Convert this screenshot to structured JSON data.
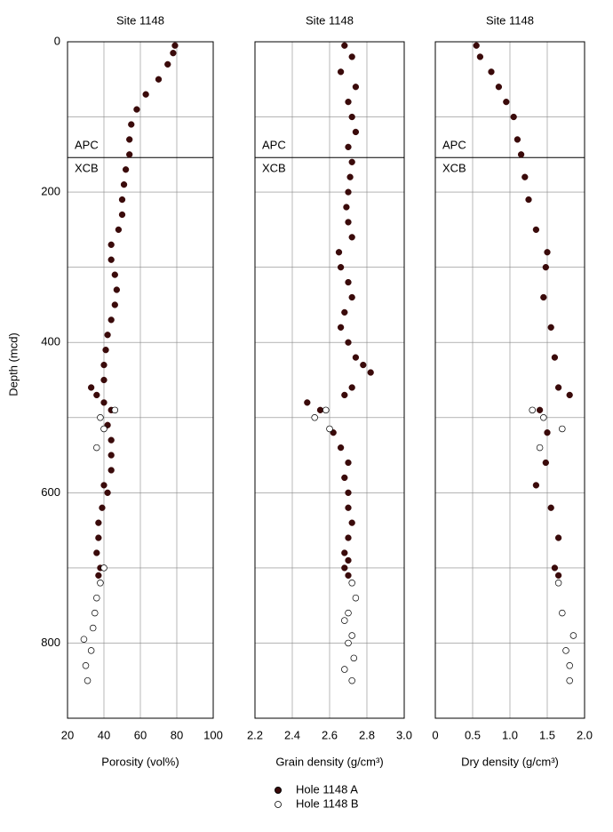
{
  "chart_data": [
    {
      "type": "scatter",
      "title": "Site 1148",
      "x_label": "Porosity (vol%)",
      "y_label": "Depth (mcd)",
      "xlim": [
        20,
        100
      ],
      "xticks": [
        20,
        40,
        60,
        80,
        100
      ],
      "ylim": [
        0,
        900
      ],
      "y_inverted": true,
      "yticks": [
        0,
        200,
        400,
        600,
        800
      ],
      "y_minor_grid": [
        100,
        300,
        500,
        700
      ],
      "grid": true,
      "annotations": [
        "APC",
        "XCB"
      ],
      "boundary_depth": 154,
      "series": [
        {
          "name": "Hole 1148 A",
          "color": "#3a0a0a",
          "filled": true,
          "x": [
            79,
            78,
            75,
            70,
            63,
            58,
            55,
            54,
            54,
            52,
            51,
            50,
            50,
            48,
            44,
            44,
            46,
            47,
            46,
            44,
            42,
            41,
            40,
            40,
            33,
            36,
            40,
            44,
            42,
            44,
            44,
            44,
            40,
            42,
            39,
            37,
            37,
            36,
            38,
            37
          ],
          "y": [
            5,
            15,
            30,
            50,
            70,
            90,
            110,
            130,
            150,
            170,
            190,
            210,
            230,
            250,
            270,
            290,
            310,
            330,
            350,
            370,
            390,
            410,
            430,
            450,
            460,
            470,
            480,
            490,
            510,
            530,
            550,
            570,
            590,
            600,
            620,
            640,
            660,
            680,
            700,
            710
          ]
        },
        {
          "name": "Hole 1148 B",
          "color": "#000000",
          "filled": false,
          "x": [
            46,
            38,
            40,
            36,
            40,
            38,
            36,
            35,
            34,
            29,
            33,
            30,
            31
          ],
          "y": [
            490,
            500,
            515,
            540,
            700,
            720,
            740,
            760,
            780,
            795,
            810,
            830,
            850
          ]
        }
      ]
    },
    {
      "type": "scatter",
      "title": "Site 1148",
      "x_label": "Grain density (g/cm³)",
      "xlim": [
        2.2,
        3.0
      ],
      "xticks": [
        2.2,
        2.4,
        2.6,
        2.8,
        {
          "value": 3,
          "label": "3.0"
        }
      ],
      "ylim": [
        0,
        900
      ],
      "y_inverted": true,
      "yticks": [
        0,
        200,
        400,
        600,
        800
      ],
      "y_minor_grid": [
        100,
        300,
        500,
        700
      ],
      "grid": true,
      "annotations": [
        "APC",
        "XCB"
      ],
      "boundary_depth": 154,
      "series": [
        {
          "name": "Hole 1148 A",
          "color": "#3a0a0a",
          "filled": true,
          "x": [
            2.68,
            2.72,
            2.66,
            2.74,
            2.7,
            2.72,
            2.74,
            2.7,
            2.72,
            2.71,
            2.7,
            2.69,
            2.7,
            2.72,
            2.65,
            2.66,
            2.7,
            2.72,
            2.68,
            2.66,
            2.7,
            2.74,
            2.78,
            2.82,
            2.72,
            2.68,
            2.48,
            2.55,
            2.62,
            2.66,
            2.7,
            2.68,
            2.7,
            2.7,
            2.72,
            2.7,
            2.68,
            2.7,
            2.68,
            2.7
          ],
          "y": [
            5,
            20,
            40,
            60,
            80,
            100,
            120,
            140,
            160,
            180,
            200,
            220,
            240,
            260,
            280,
            300,
            320,
            340,
            360,
            380,
            400,
            420,
            430,
            440,
            460,
            470,
            480,
            490,
            520,
            540,
            560,
            580,
            600,
            620,
            640,
            660,
            680,
            690,
            700,
            710
          ]
        },
        {
          "name": "Hole 1148 B",
          "color": "#000000",
          "filled": false,
          "x": [
            2.58,
            2.52,
            2.6,
            2.72,
            2.74,
            2.7,
            2.68,
            2.72,
            2.7,
            2.73,
            2.68,
            2.72
          ],
          "y": [
            490,
            500,
            515,
            720,
            740,
            760,
            770,
            790,
            800,
            820,
            835,
            850
          ]
        }
      ]
    },
    {
      "type": "scatter",
      "title": "Site 1148",
      "x_label": "Dry density (g/cm³)",
      "xlim": [
        0,
        2.0
      ],
      "xticks": [
        0,
        0.5,
        {
          "value": 1,
          "label": "1.0"
        },
        1.5,
        {
          "value": 2,
          "label": "2.0"
        }
      ],
      "ylim": [
        0,
        900
      ],
      "y_inverted": true,
      "yticks": [
        0,
        200,
        400,
        600,
        800
      ],
      "y_minor_grid": [
        100,
        300,
        500,
        700
      ],
      "grid": true,
      "annotations": [
        "APC",
        "XCB"
      ],
      "boundary_depth": 154,
      "series": [
        {
          "name": "Hole 1148 A",
          "color": "#3a0a0a",
          "filled": true,
          "x": [
            0.55,
            0.6,
            0.75,
            0.85,
            0.95,
            1.05,
            1.1,
            1.15,
            1.2,
            1.25,
            1.35,
            1.5,
            1.48,
            1.45,
            1.55,
            1.6,
            1.65,
            1.8,
            1.4,
            1.5,
            1.48,
            1.35,
            1.55,
            1.65,
            1.6,
            1.65
          ],
          "y": [
            5,
            20,
            40,
            60,
            80,
            100,
            130,
            150,
            180,
            210,
            250,
            280,
            300,
            340,
            380,
            420,
            460,
            470,
            490,
            520,
            560,
            590,
            620,
            660,
            700,
            710
          ]
        },
        {
          "name": "Hole 1148 B",
          "color": "#000000",
          "filled": false,
          "x": [
            1.3,
            1.45,
            1.7,
            1.4,
            1.65,
            1.7,
            1.85,
            1.75,
            1.8,
            1.8
          ],
          "y": [
            490,
            500,
            515,
            540,
            720,
            760,
            790,
            810,
            830,
            850
          ]
        }
      ]
    }
  ]
}
